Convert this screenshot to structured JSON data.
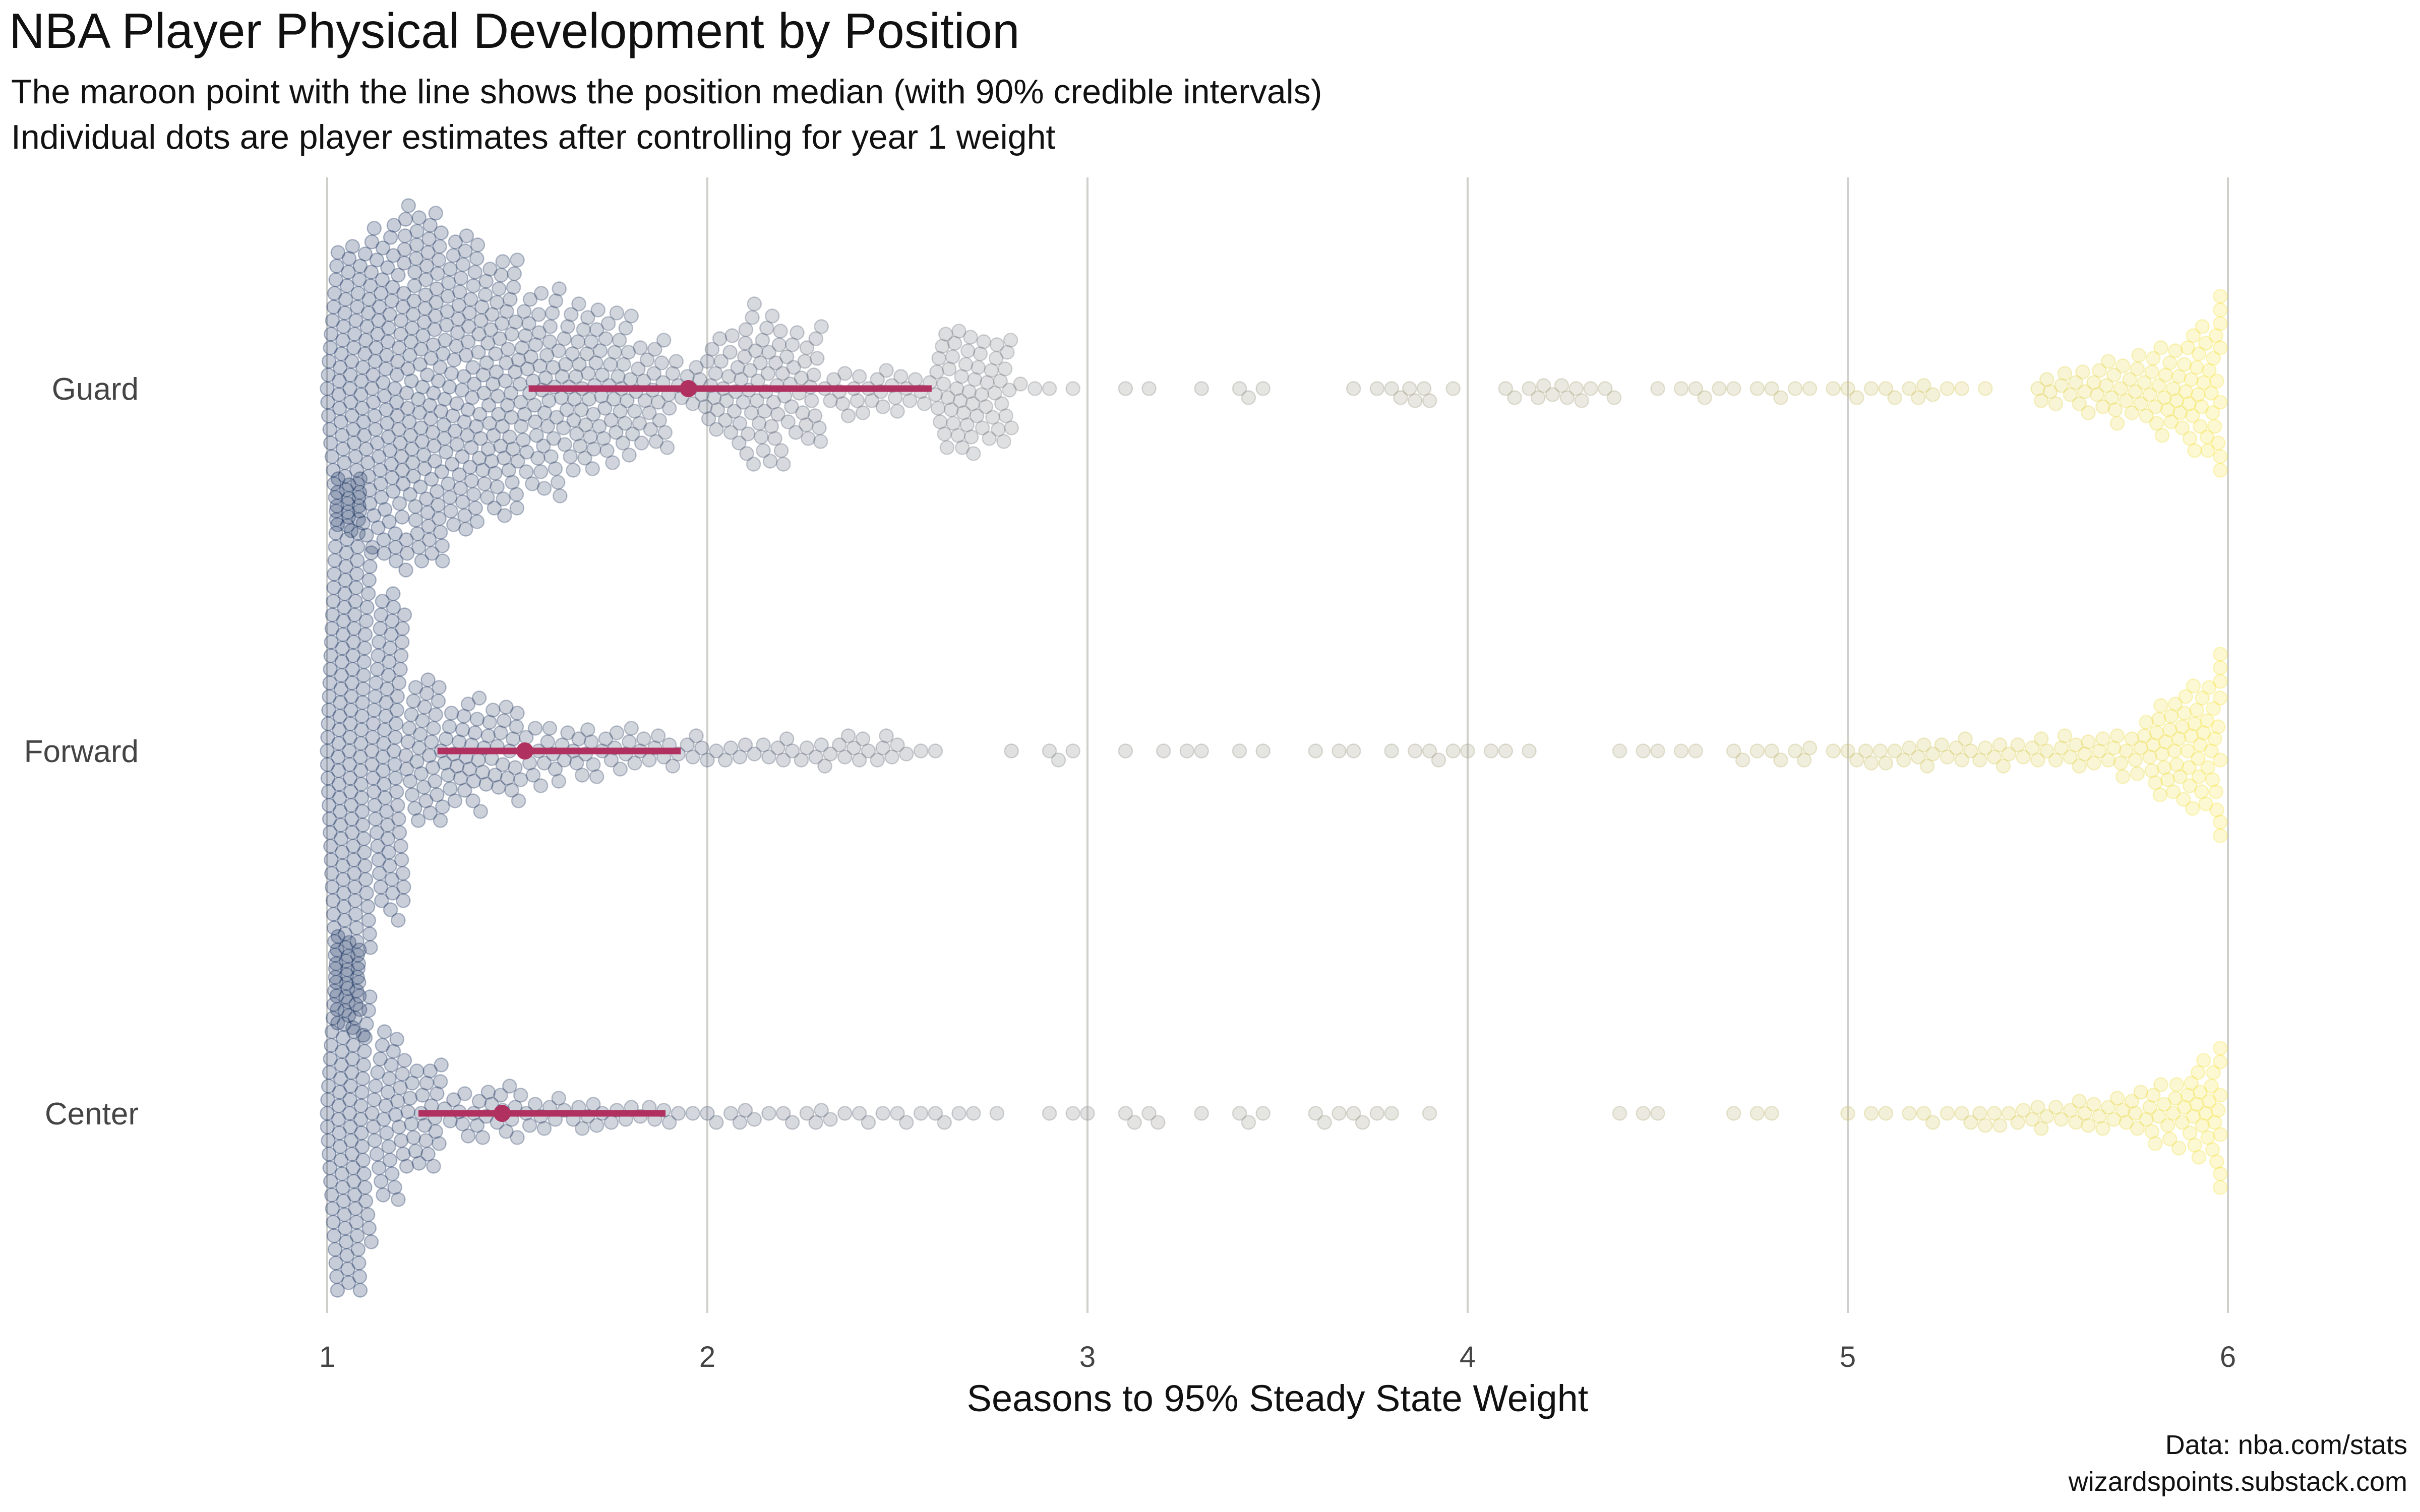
{
  "chart_data": {
    "type": "scatter",
    "subtype": "beeswarm",
    "title": "NBA Player Physical Development by Position",
    "subtitle_lines": [
      "The maroon point with the line shows the position median (with 90% credible intervals)",
      "Individual dots are player estimates after controlling for year 1 weight"
    ],
    "xlabel": "Seasons to 95% Steady State Weight",
    "ylabel": "",
    "xlim": [
      1,
      6
    ],
    "xticks": [
      "1",
      "2",
      "3",
      "4",
      "5",
      "6"
    ],
    "grid": "vertical",
    "caption_lines": [
      "Data: nba.com/stats",
      "wizardspoints.substack.com"
    ],
    "colors": {
      "median": "#b0305f",
      "low": "#1b3463",
      "mid": "#8d8d8d",
      "khaki": "#b3ad85",
      "high": "#f7e64a"
    },
    "positions": [
      {
        "name": "Guard",
        "median": 1.95,
        "ci_low": 1.53,
        "ci_high": 2.59,
        "dot_bins": [
          [
            1.05,
            70
          ],
          [
            1.15,
            80
          ],
          [
            1.25,
            85
          ],
          [
            1.35,
            70
          ],
          [
            1.45,
            60
          ],
          [
            1.55,
            45
          ],
          [
            1.65,
            40
          ],
          [
            1.75,
            35
          ],
          [
            1.85,
            25
          ],
          [
            1.95,
            12
          ],
          [
            2.05,
            25
          ],
          [
            2.15,
            35
          ],
          [
            2.25,
            25
          ],
          [
            2.35,
            10
          ],
          [
            2.45,
            10
          ],
          [
            2.55,
            8
          ],
          [
            2.65,
            30
          ],
          [
            2.75,
            25
          ],
          [
            2.85,
            3
          ],
          [
            2.95,
            2
          ],
          [
            3.15,
            2
          ],
          [
            3.35,
            1
          ],
          [
            3.45,
            3
          ],
          [
            3.75,
            2
          ],
          [
            3.85,
            5
          ],
          [
            3.95,
            2
          ],
          [
            4.15,
            4
          ],
          [
            4.25,
            5
          ],
          [
            4.35,
            4
          ],
          [
            4.55,
            2
          ],
          [
            4.65,
            3
          ],
          [
            4.75,
            2
          ],
          [
            4.85,
            3
          ],
          [
            4.95,
            2
          ],
          [
            5.05,
            3
          ],
          [
            5.15,
            4
          ],
          [
            5.25,
            3
          ],
          [
            5.35,
            2
          ],
          [
            5.55,
            8
          ],
          [
            5.65,
            12
          ],
          [
            5.75,
            15
          ],
          [
            5.85,
            22
          ],
          [
            5.95,
            30
          ]
        ]
      },
      {
        "name": "Forward",
        "median": 1.52,
        "ci_low": 1.29,
        "ci_high": 1.93,
        "dot_bins": [
          [
            1.05,
            140
          ],
          [
            1.15,
            80
          ],
          [
            1.25,
            35
          ],
          [
            1.35,
            25
          ],
          [
            1.45,
            22
          ],
          [
            1.55,
            14
          ],
          [
            1.65,
            12
          ],
          [
            1.75,
            10
          ],
          [
            1.85,
            8
          ],
          [
            1.95,
            7
          ],
          [
            2.05,
            5
          ],
          [
            2.15,
            5
          ],
          [
            2.25,
            6
          ],
          [
            2.35,
            7
          ],
          [
            2.45,
            7
          ],
          [
            2.55,
            3
          ],
          [
            2.65,
            1
          ],
          [
            2.85,
            1
          ],
          [
            2.95,
            3
          ],
          [
            3.15,
            1
          ],
          [
            3.25,
            2
          ],
          [
            3.35,
            1
          ],
          [
            3.45,
            2
          ],
          [
            3.65,
            2
          ],
          [
            3.75,
            1
          ],
          [
            3.85,
            2
          ],
          [
            3.95,
            3
          ],
          [
            4.05,
            2
          ],
          [
            4.15,
            2
          ],
          [
            4.45,
            2
          ],
          [
            4.55,
            2
          ],
          [
            4.65,
            1
          ],
          [
            4.75,
            3
          ],
          [
            4.85,
            4
          ],
          [
            4.95,
            2
          ],
          [
            5.05,
            5
          ],
          [
            5.15,
            5
          ],
          [
            5.25,
            6
          ],
          [
            5.35,
            6
          ],
          [
            5.45,
            6
          ],
          [
            5.55,
            7
          ],
          [
            5.65,
            8
          ],
          [
            5.75,
            12
          ],
          [
            5.85,
            25
          ],
          [
            5.95,
            30
          ]
        ]
      },
      {
        "name": "Center",
        "median": 1.46,
        "ci_low": 1.24,
        "ci_high": 1.89,
        "dot_bins": [
          [
            1.05,
            90
          ],
          [
            1.15,
            40
          ],
          [
            1.25,
            25
          ],
          [
            1.35,
            10
          ],
          [
            1.45,
            12
          ],
          [
            1.55,
            8
          ],
          [
            1.65,
            7
          ],
          [
            1.75,
            6
          ],
          [
            1.85,
            5
          ],
          [
            1.95,
            3
          ],
          [
            2.05,
            4
          ],
          [
            2.15,
            3
          ],
          [
            2.25,
            4
          ],
          [
            2.35,
            3
          ],
          [
            2.45,
            3
          ],
          [
            2.55,
            3
          ],
          [
            2.65,
            3
          ],
          [
            2.75,
            2
          ],
          [
            2.95,
            2
          ],
          [
            3.05,
            1
          ],
          [
            3.15,
            4
          ],
          [
            3.35,
            1
          ],
          [
            3.45,
            3
          ],
          [
            3.65,
            3
          ],
          [
            3.75,
            3
          ],
          [
            3.85,
            1
          ],
          [
            3.95,
            1
          ],
          [
            4.45,
            2
          ],
          [
            4.55,
            1
          ],
          [
            4.75,
            2
          ],
          [
            4.85,
            1
          ],
          [
            5.05,
            2
          ],
          [
            5.15,
            2
          ],
          [
            5.25,
            3
          ],
          [
            5.35,
            5
          ],
          [
            5.45,
            5
          ],
          [
            5.55,
            6
          ],
          [
            5.65,
            8
          ],
          [
            5.75,
            10
          ],
          [
            5.85,
            15
          ],
          [
            5.95,
            25
          ]
        ]
      }
    ]
  }
}
